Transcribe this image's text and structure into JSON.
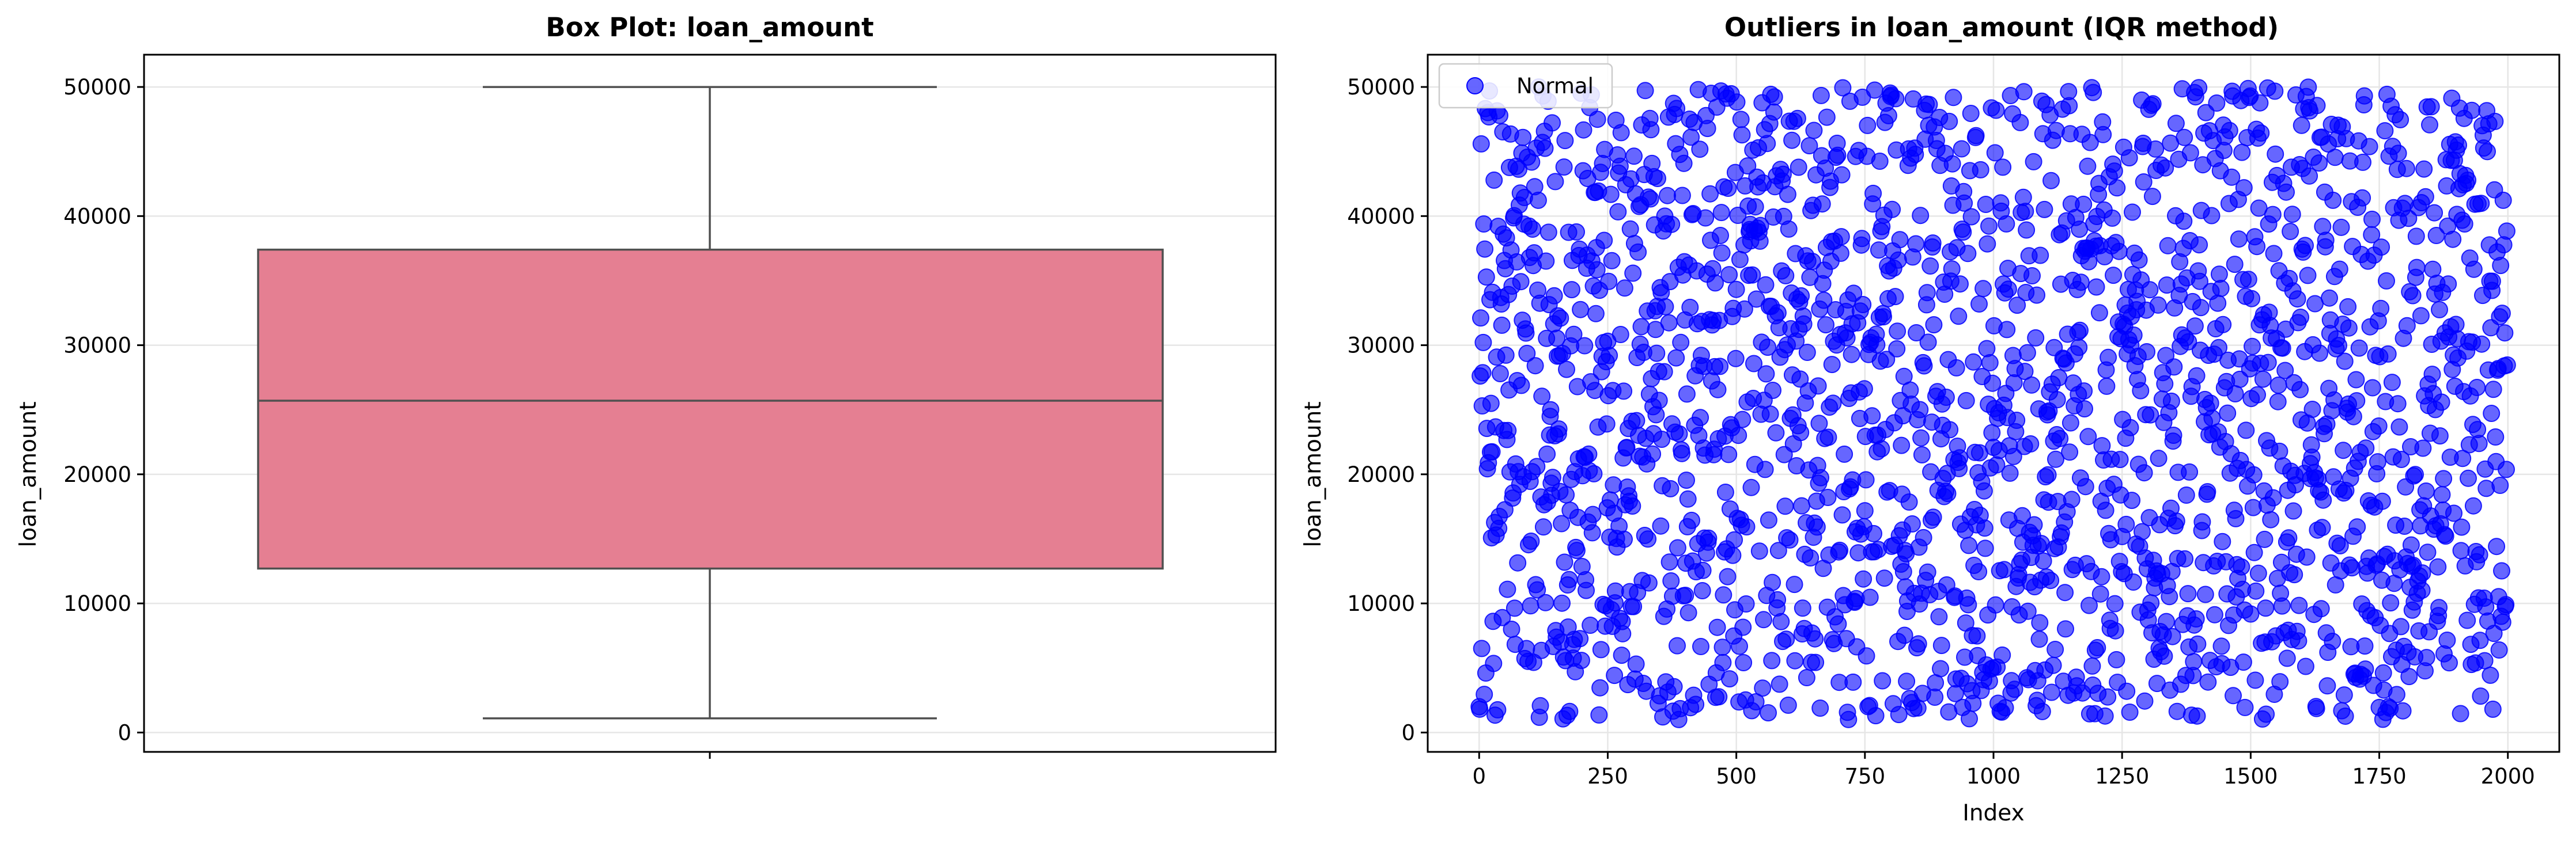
{
  "chart_data": [
    {
      "type": "box",
      "title": "Box Plot: loan_amount",
      "xlabel": "",
      "ylabel": "loan_amount",
      "ylim": [
        -1500,
        52500
      ],
      "yticks": [
        0,
        10000,
        20000,
        30000,
        40000,
        50000
      ],
      "grid": true,
      "box": {
        "whisker_low": 1100,
        "q1": 12700,
        "median": 25700,
        "q3": 37400,
        "whisker_high": 50000,
        "color": "#e57f92"
      }
    },
    {
      "type": "scatter",
      "title": "Outliers in loan_amount (IQR method)",
      "xlabel": "Index",
      "ylabel": "loan_amount",
      "xlim": [
        -100,
        2100
      ],
      "ylim": [
        -1500,
        52500
      ],
      "xticks": [
        0,
        250,
        500,
        750,
        1000,
        1250,
        1500,
        1750,
        2000
      ],
      "yticks": [
        0,
        10000,
        20000,
        30000,
        40000,
        50000
      ],
      "grid": true,
      "legend_position": "top-left",
      "series": [
        {
          "name": "Normal",
          "color": "#0000ff",
          "alpha": 0.6,
          "n_points": 2000,
          "x_range": [
            0,
            1999
          ],
          "y_range": [
            1000,
            50000
          ],
          "distribution": "uniform"
        }
      ]
    }
  ]
}
